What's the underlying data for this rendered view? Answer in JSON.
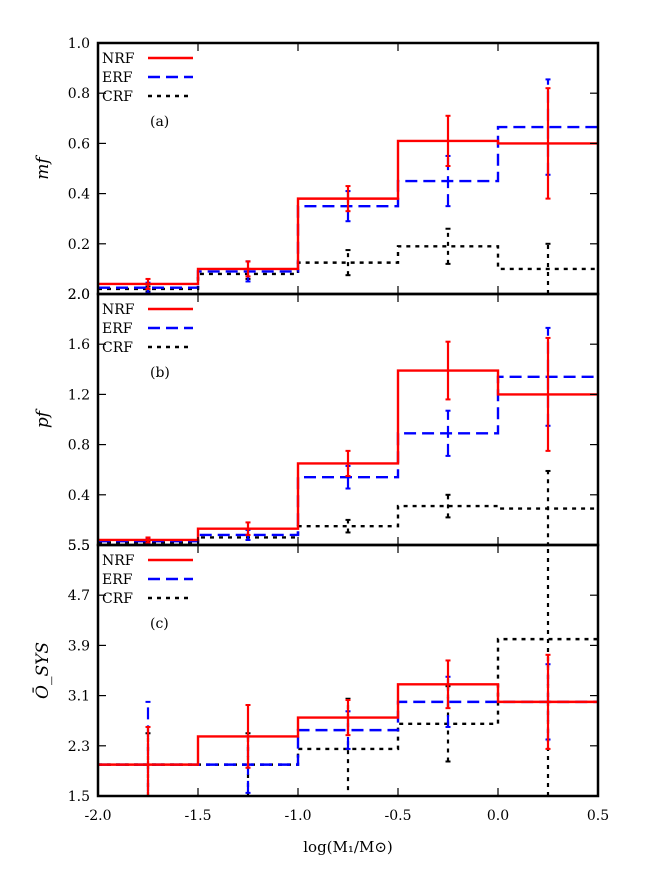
{
  "chart_data": [
    {
      "type": "line",
      "panel_label": "(a)",
      "ylabel": "mf",
      "xlim": [
        -2.0,
        0.5
      ],
      "ylim": [
        0.0,
        1.0
      ],
      "ytick_labels": [
        "2.0",
        "0.2",
        "0.4",
        "0.6",
        "0.8",
        "1.0"
      ],
      "ytick_values": [
        0.0,
        0.2,
        0.4,
        0.6,
        0.8,
        1.0
      ],
      "bin_edges": [
        -2.0,
        -1.5,
        -1.0,
        -0.5,
        0.0,
        0.5
      ],
      "bin_centers": [
        -1.75,
        -1.25,
        -0.75,
        -0.25,
        0.25
      ],
      "series": [
        {
          "name": "NRF",
          "color": "#ff0000",
          "dash": "solid",
          "values": [
            0.04,
            0.1,
            0.38,
            0.61,
            0.6
          ],
          "err_low": [
            0.02,
            0.03,
            0.05,
            0.1,
            0.22
          ],
          "err_high": [
            0.02,
            0.03,
            0.05,
            0.1,
            0.22
          ]
        },
        {
          "name": "ERF",
          "color": "#0000ff",
          "dash": "dashed",
          "values": [
            0.025,
            0.09,
            0.35,
            0.45,
            0.665
          ],
          "err_low": [
            0.02,
            0.04,
            0.06,
            0.1,
            0.19
          ],
          "err_high": [
            0.02,
            0.04,
            0.06,
            0.1,
            0.19
          ]
        },
        {
          "name": "CRF",
          "color": "#000000",
          "dash": "dotted",
          "values": [
            0.02,
            0.08,
            0.125,
            0.19,
            0.1
          ],
          "err_low": [
            0.01,
            0.02,
            0.05,
            0.07,
            0.1
          ],
          "err_high": [
            0.01,
            0.02,
            0.05,
            0.07,
            0.1
          ]
        }
      ]
    },
    {
      "type": "line",
      "panel_label": "(b)",
      "ylabel": "pf",
      "xlim": [
        -2.0,
        0.5
      ],
      "ylim": [
        0.0,
        2.0
      ],
      "ytick_labels": [
        "5.5",
        "0.4",
        "0.8",
        "1.2",
        "1.6",
        "2.0"
      ],
      "ytick_values": [
        0.0,
        0.4,
        0.8,
        1.2,
        1.6,
        2.0
      ],
      "bin_edges": [
        -2.0,
        -1.5,
        -1.0,
        -0.5,
        0.0,
        0.5
      ],
      "bin_centers": [
        -1.75,
        -1.25,
        -0.75,
        -0.25,
        0.25
      ],
      "series": [
        {
          "name": "NRF",
          "color": "#ff0000",
          "dash": "solid",
          "values": [
            0.04,
            0.13,
            0.65,
            1.39,
            1.2
          ],
          "err_low": [
            0.02,
            0.05,
            0.1,
            0.23,
            0.45
          ],
          "err_high": [
            0.02,
            0.05,
            0.1,
            0.23,
            0.45
          ]
        },
        {
          "name": "ERF",
          "color": "#0000ff",
          "dash": "dashed",
          "values": [
            0.03,
            0.08,
            0.54,
            0.89,
            1.34
          ],
          "err_low": [
            0.02,
            0.04,
            0.09,
            0.18,
            0.39
          ],
          "err_high": [
            0.02,
            0.04,
            0.09,
            0.18,
            0.39
          ]
        },
        {
          "name": "CRF",
          "color": "#000000",
          "dash": "dotted",
          "values": [
            0.02,
            0.06,
            0.15,
            0.31,
            0.29
          ],
          "err_low": [
            0.01,
            0.02,
            0.05,
            0.09,
            0.3
          ],
          "err_high": [
            0.01,
            0.02,
            0.05,
            0.09,
            0.3
          ]
        }
      ]
    },
    {
      "type": "line",
      "panel_label": "(c)",
      "ylabel": "Ō_SYS",
      "xlim": [
        -2.0,
        0.5
      ],
      "ylim": [
        1.5,
        5.5
      ],
      "ytick_labels": [
        "1.5",
        "2.3",
        "3.1",
        "3.9",
        "4.7",
        "5.5"
      ],
      "ytick_values": [
        1.5,
        2.3,
        3.1,
        3.9,
        4.7,
        5.5
      ],
      "bin_edges": [
        -2.0,
        -1.5,
        -1.0,
        -0.5,
        0.0,
        0.5
      ],
      "bin_centers": [
        -1.75,
        -1.25,
        -0.75,
        -0.25,
        0.25
      ],
      "series": [
        {
          "name": "NRF",
          "color": "#ff0000",
          "dash": "solid",
          "values": [
            2.0,
            2.45,
            2.75,
            3.28,
            3.0
          ],
          "err_low": [
            0.6,
            0.5,
            0.28,
            0.38,
            0.75
          ],
          "err_high": [
            0.6,
            0.5,
            0.28,
            0.38,
            0.75
          ]
        },
        {
          "name": "ERF",
          "color": "#0000ff",
          "dash": "dashed",
          "values": [
            2.0,
            2.0,
            2.55,
            3.0,
            3.0
          ],
          "err_low": [
            1.0,
            0.45,
            0.3,
            0.4,
            0.6
          ],
          "err_high": [
            1.0,
            0.45,
            0.3,
            0.4,
            0.6
          ]
        },
        {
          "name": "CRF",
          "color": "#000000",
          "dash": "dotted",
          "values": [
            2.0,
            2.0,
            2.25,
            2.65,
            4.0
          ],
          "err_low": [
            0.5,
            0.5,
            0.8,
            0.6,
            2.5
          ],
          "err_high": [
            0.5,
            0.5,
            0.8,
            0.6,
            2.5
          ]
        }
      ]
    }
  ],
  "xaxis": {
    "tick_labels": [
      "-2.0",
      "-1.5",
      "-1.0",
      "-0.5",
      "0.0",
      "0.5"
    ],
    "tick_values": [
      -2.0,
      -1.5,
      -1.0,
      -0.5,
      0.0,
      0.5
    ],
    "label": "log(M₁/M⊙)"
  }
}
